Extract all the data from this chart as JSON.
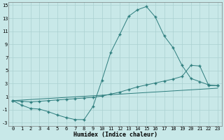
{
  "xlabel": "Humidex (Indice chaleur)",
  "xlim": [
    -0.5,
    23.5
  ],
  "ylim": [
    -3.5,
    15.5
  ],
  "xticks": [
    0,
    1,
    2,
    3,
    4,
    5,
    6,
    7,
    8,
    9,
    10,
    11,
    12,
    13,
    14,
    15,
    16,
    17,
    18,
    19,
    20,
    21,
    22,
    23
  ],
  "yticks": [
    -3,
    -1,
    1,
    3,
    5,
    7,
    9,
    11,
    13,
    15
  ],
  "line_color": "#2d7d7d",
  "background_color": "#c8e8e8",
  "grid_color": "#aad0d0",
  "curve1_x": [
    0,
    1,
    2,
    3,
    4,
    5,
    6,
    7,
    8,
    9,
    10,
    11,
    12,
    13,
    14,
    15,
    16,
    17,
    18,
    19,
    20,
    21,
    22,
    23
  ],
  "curve1_y": [
    0.4,
    -0.3,
    -0.8,
    -0.9,
    -1.3,
    -1.8,
    -2.2,
    -2.5,
    -2.5,
    -0.5,
    3.5,
    7.8,
    10.5,
    13.3,
    14.3,
    14.8,
    13.2,
    10.3,
    8.5,
    5.8,
    3.8,
    3.3,
    2.8,
    2.7
  ],
  "curve2_x": [
    0,
    1,
    2,
    3,
    4,
    5,
    6,
    7,
    8,
    9,
    10,
    11,
    12,
    13,
    14,
    15,
    16,
    17,
    18,
    19,
    20,
    21,
    22,
    23
  ],
  "curve2_y": [
    0.4,
    0.3,
    0.2,
    0.3,
    0.4,
    0.5,
    0.6,
    0.7,
    0.8,
    0.9,
    1.1,
    1.4,
    1.7,
    2.1,
    2.5,
    2.8,
    3.1,
    3.4,
    3.7,
    4.1,
    5.8,
    5.7,
    2.7,
    2.7
  ],
  "line3_x": [
    0,
    23
  ],
  "line3_y": [
    0.4,
    2.3
  ],
  "marker_size": 1.8,
  "line_width": 0.7,
  "tick_fontsize": 5.0,
  "xlabel_fontsize": 6.0
}
